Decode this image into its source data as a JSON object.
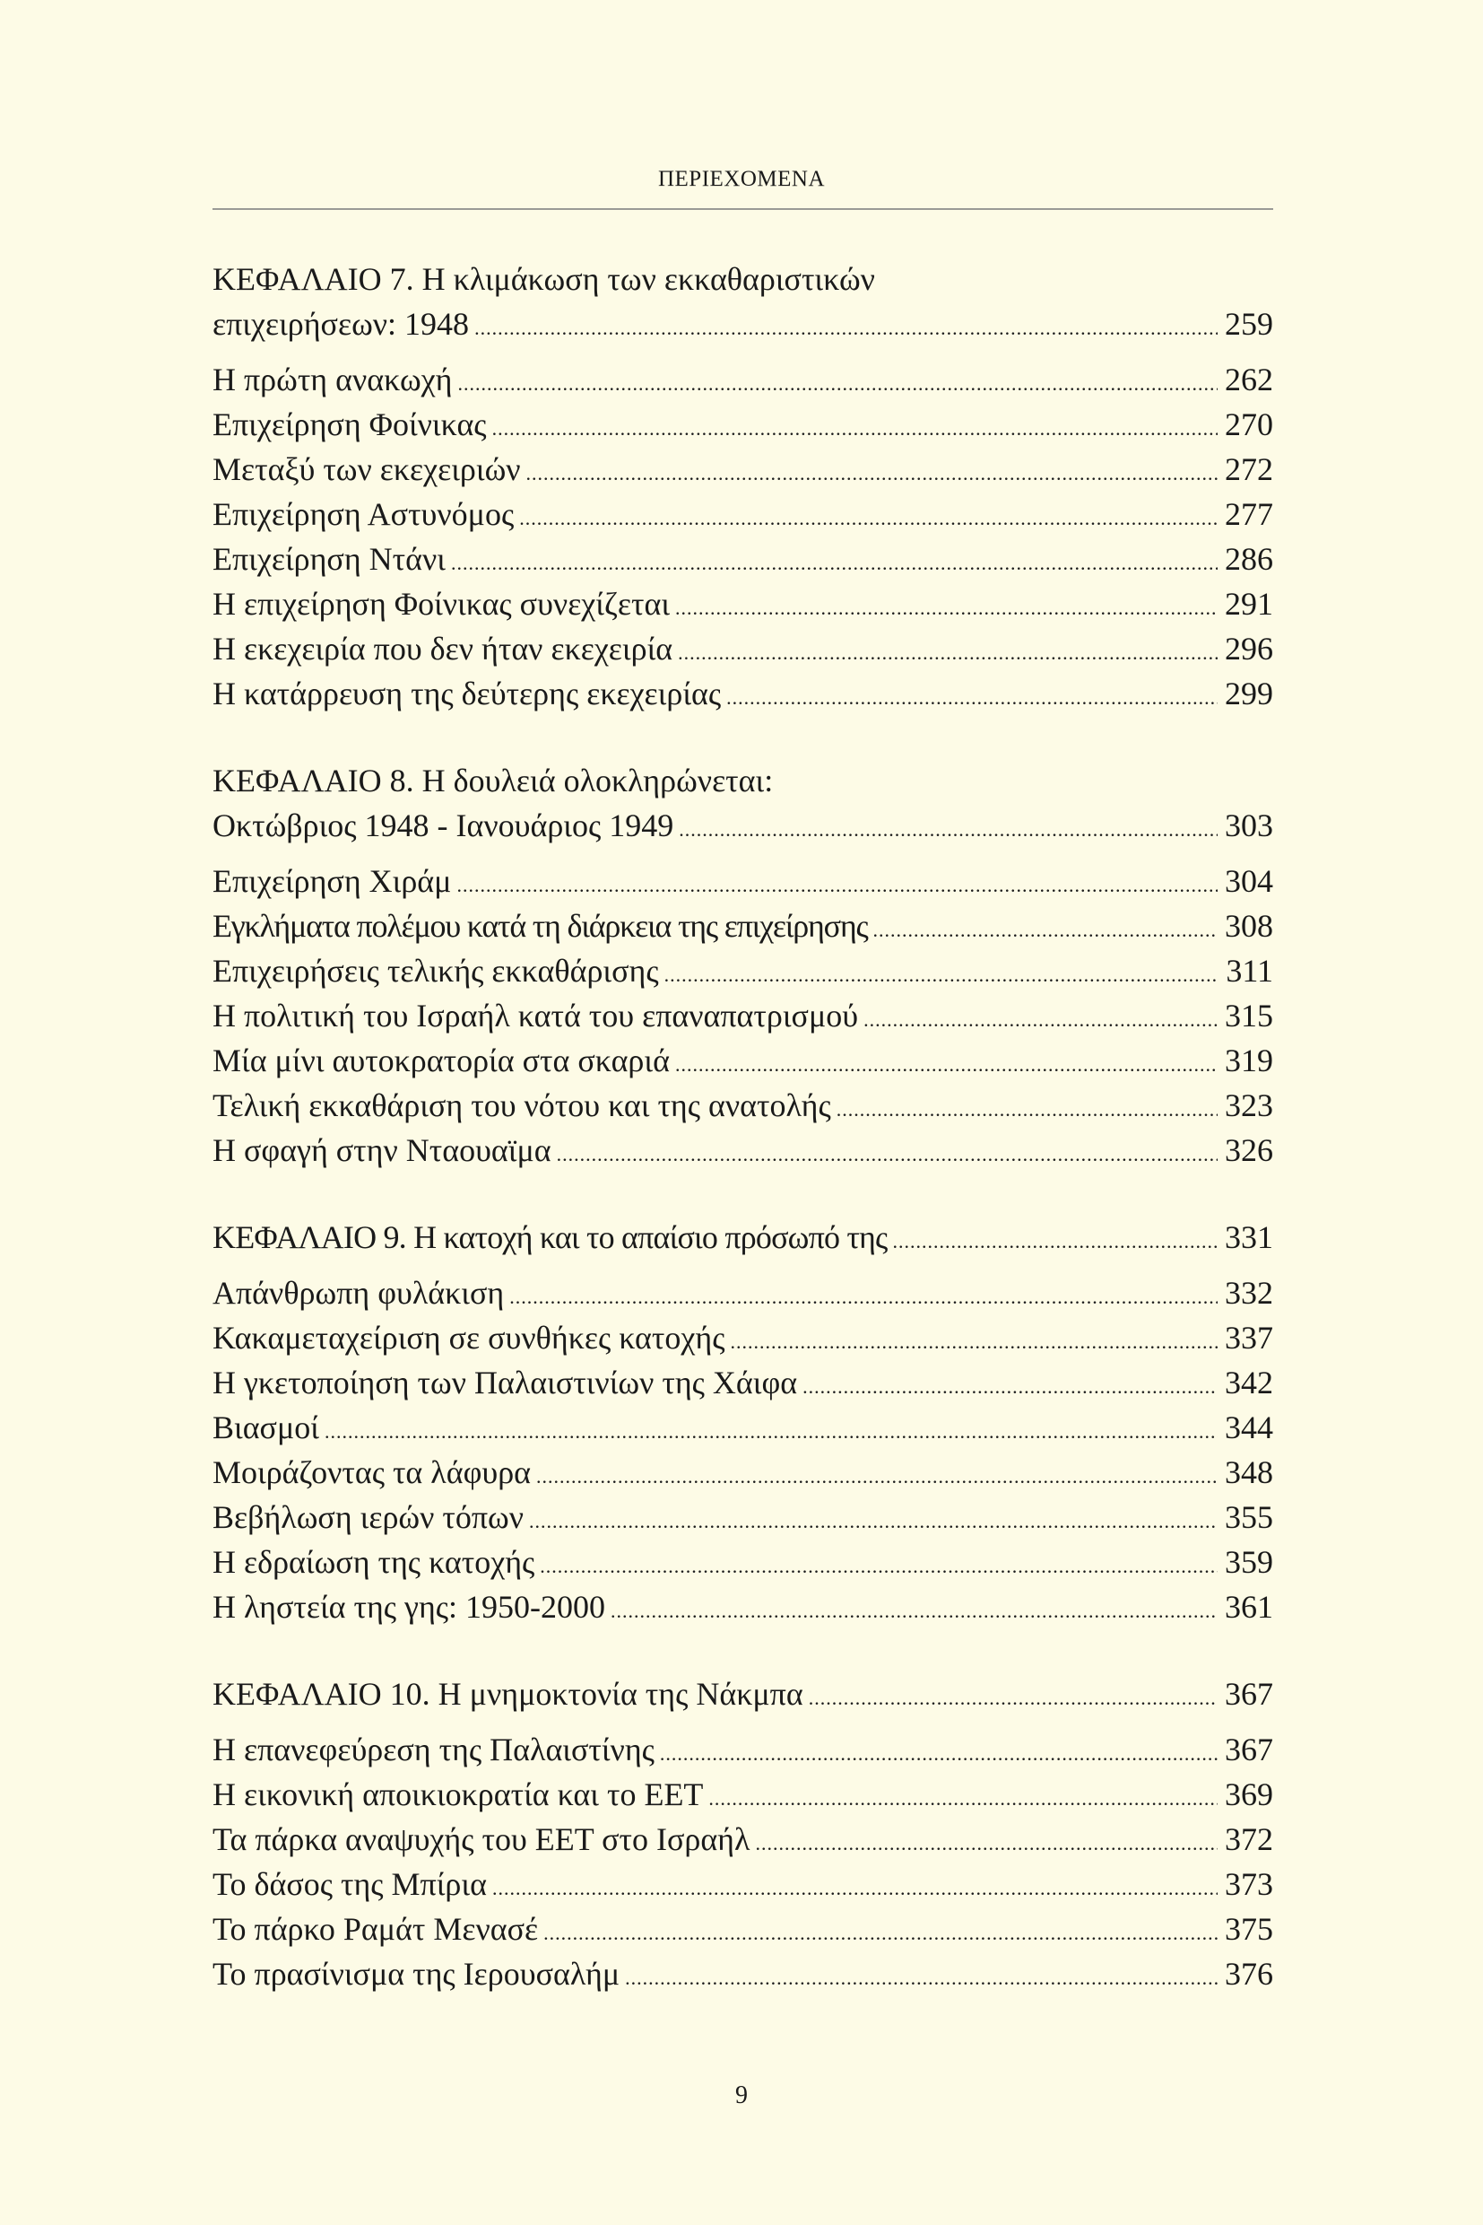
{
  "header": "ΠΕΡΙΕΧΟΜΕΝΑ",
  "page_number": "9",
  "sections": [
    {
      "title_line1": "ΚΕΦΑΛΑΙΟ 7. Η κλιμάκωση των εκκαθαριστικών",
      "title_line2": "επιχειρήσεων: 1948",
      "page": "259",
      "entries": [
        {
          "title": "Η πρώτη ανακωχή",
          "page": "262"
        },
        {
          "title": "Επιχείρηση Φοίνικας",
          "page": "270"
        },
        {
          "title": "Μεταξύ των εκεχειριών",
          "page": "272"
        },
        {
          "title": "Επιχείρηση Αστυνόμος",
          "page": "277"
        },
        {
          "title": "Επιχείρηση Ντάνι",
          "page": "286"
        },
        {
          "title": "Η επιχείρηση Φοίνικας συνεχίζεται",
          "page": "291"
        },
        {
          "title": "Η εκεχειρία που δεν ήταν εκεχειρία",
          "page": "296"
        },
        {
          "title": "Η κατάρρευση της δεύτερης εκεχειρίας",
          "page": "299"
        }
      ]
    },
    {
      "title_line1": "ΚΕΦΑΛΑΙΟ 8. Η δουλειά ολοκληρώνεται:",
      "title_line2": "Οκτώβριος 1948 - Ιανουάριος 1949",
      "page": "303",
      "entries": [
        {
          "title": "Επιχείρηση Χιράμ",
          "page": "304"
        },
        {
          "title": "Εγκλήματα πολέμου κατά τη διάρκεια της επιχείρησης",
          "page": "308"
        },
        {
          "title": "Επιχειρήσεις τελικής εκκαθάρισης",
          "page": "311"
        },
        {
          "title": "Η πολιτική του Ισραήλ κατά του επαναπατρισμού",
          "page": "315"
        },
        {
          "title": "Μία μίνι αυτοκρατορία στα σκαριά",
          "page": "319"
        },
        {
          "title": "Τελική εκκαθάριση του νότου και της ανατολής",
          "page": "323"
        },
        {
          "title": "Η σφαγή στην Νταουαϊμα",
          "page": "326"
        }
      ]
    },
    {
      "title_line1": "ΚΕΦΑΛΑΙΟ 9. Η κατοχή και το απαίσιο πρόσωπό της",
      "page": "331",
      "entries": [
        {
          "title": "Απάνθρωπη φυλάκιση",
          "page": "332"
        },
        {
          "title": "Κακαμεταχείριση σε συνθήκες κατοχής",
          "page": "337"
        },
        {
          "title": "Η γκετοποίηση των Παλαιστινίων της Χάιφα",
          "page": "342"
        },
        {
          "title": "Βιασμοί",
          "page": "344"
        },
        {
          "title": "Μοιράζοντας τα λάφυρα",
          "page": "348"
        },
        {
          "title": "Βεβήλωση ιερών τόπων",
          "page": "355"
        },
        {
          "title": "Η εδραίωση της κατοχής",
          "page": "359"
        },
        {
          "title": "Η ληστεία της γης: 1950-2000",
          "page": "361"
        }
      ]
    },
    {
      "title_line1": "ΚΕΦΑΛΑΙΟ 10. Η μνημοκτονία της Νάκμπα",
      "page": "367",
      "entries": [
        {
          "title": "Η επανεφεύρεση της Παλαιστίνης",
          "page": "367"
        },
        {
          "title": "Η εικονική αποικιοκρατία και το ΕΕΤ",
          "page": "369"
        },
        {
          "title": "Τα πάρκα αναψυχής του ΕΕΤ στο Ισραήλ",
          "page": "372"
        },
        {
          "title": "Το δάσος της Μπίρια",
          "page": "373"
        },
        {
          "title": "Το πάρκο Ραμάτ Μενασέ",
          "page": "375"
        },
        {
          "title": "Το πρασίνισμα της Ιερουσαλήμ",
          "page": "376"
        }
      ]
    }
  ]
}
